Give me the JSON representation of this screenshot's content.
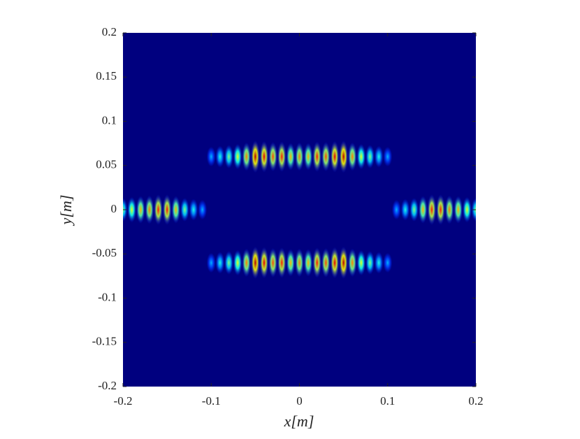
{
  "chart_data": {
    "type": "heatmap",
    "xlabel": "x[m]",
    "ylabel": "y[m]",
    "xlim": [
      -0.2,
      0.2
    ],
    "ylim": [
      -0.2,
      0.2
    ],
    "xticks": [
      -0.2,
      -0.1,
      0,
      0.1,
      0.2
    ],
    "yticks": [
      -0.2,
      -0.15,
      -0.1,
      -0.05,
      0,
      0.05,
      0.1,
      0.15,
      0.2
    ],
    "colormap": "jet",
    "background": "#00007f",
    "x": [
      -0.1,
      -0.09,
      -0.08,
      -0.07,
      -0.06,
      -0.05,
      -0.04,
      -0.03,
      -0.02,
      -0.01,
      0,
      0.01,
      0.02,
      0.03,
      0.04,
      0.05,
      0.06,
      0.07,
      0.08,
      0.09,
      0.1,
      -0.1,
      -0.09,
      -0.08,
      -0.07,
      -0.06,
      -0.05,
      -0.04,
      -0.03,
      -0.02,
      -0.01,
      0,
      0.01,
      0.02,
      0.03,
      0.04,
      0.05,
      0.06,
      0.07,
      0.08,
      0.09,
      0.1,
      -0.2,
      -0.19,
      -0.18,
      -0.17,
      -0.16,
      -0.15,
      -0.14,
      -0.13,
      -0.12,
      -0.11,
      0.11,
      0.12,
      0.13,
      0.14,
      0.15,
      0.16,
      0.17,
      0.18,
      0.19,
      0.2
    ],
    "y": [
      0.06,
      0.06,
      0.06,
      0.06,
      0.06,
      0.06,
      0.06,
      0.06,
      0.06,
      0.06,
      0.06,
      0.06,
      0.06,
      0.06,
      0.06,
      0.06,
      0.06,
      0.06,
      0.06,
      0.06,
      0.06,
      -0.06,
      -0.06,
      -0.06,
      -0.06,
      -0.06,
      -0.06,
      -0.06,
      -0.06,
      -0.06,
      -0.06,
      -0.06,
      -0.06,
      -0.06,
      -0.06,
      -0.06,
      -0.06,
      -0.06,
      -0.06,
      -0.06,
      -0.06,
      -0.06,
      0,
      0,
      0,
      0,
      0,
      0,
      0,
      0,
      0,
      0,
      0,
      0,
      0,
      0,
      0,
      0,
      0,
      0,
      0,
      0
    ],
    "values": [
      0.3,
      0.4,
      0.5,
      0.6,
      0.75,
      0.95,
      0.9,
      0.8,
      0.85,
      0.7,
      0.75,
      0.7,
      0.85,
      0.8,
      0.9,
      0.95,
      0.75,
      0.6,
      0.5,
      0.4,
      0.3,
      0.3,
      0.4,
      0.5,
      0.6,
      0.75,
      0.95,
      0.9,
      0.8,
      0.85,
      0.7,
      0.75,
      0.7,
      0.85,
      0.8,
      0.9,
      0.95,
      0.75,
      0.6,
      0.5,
      0.4,
      0.3,
      0.5,
      0.6,
      0.7,
      0.75,
      0.85,
      0.85,
      0.7,
      0.5,
      0.4,
      0.3,
      0.3,
      0.4,
      0.5,
      0.7,
      0.85,
      0.85,
      0.75,
      0.7,
      0.6,
      0.5
    ]
  }
}
